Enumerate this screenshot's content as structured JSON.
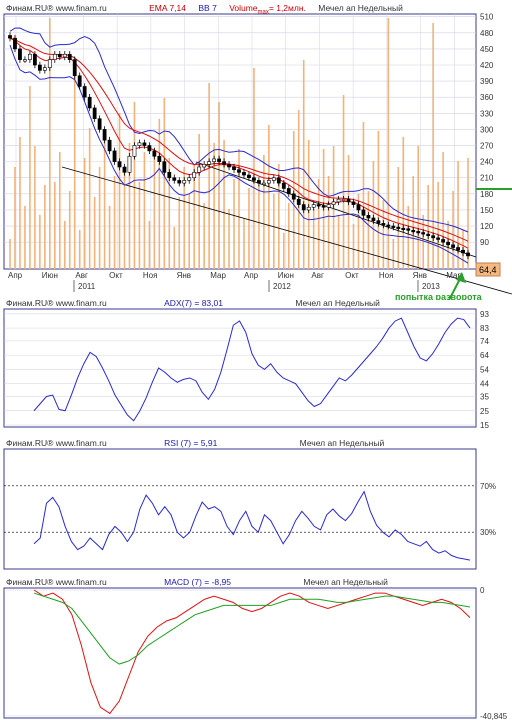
{
  "colors": {
    "frame": "#3a3a8c",
    "grid": "#d2d2e4",
    "price_up": "#ffffff",
    "price_down": "#000000",
    "bollinger": "#2a2ad0",
    "ema": "#e01010",
    "volume": "#f2b27a",
    "trendline": "#000000",
    "support_line": "#2aa02a",
    "annotation": "#2aa02a",
    "adx": "#2a2ad0",
    "rsi": "#2a2ad0",
    "macd_line": "#e01010",
    "macd_signal": "#20a020",
    "last_price_box": "#f4b880"
  },
  "price_panel": {
    "header": {
      "source": "Финам.RU®  www.finam.ru",
      "ema": "EMA 7,14",
      "bb": "BB 7",
      "volume_prefix": "Volume",
      "volume_sub": "max",
      "volume_value": "= 1,2млн.",
      "ticker": "Мечел ап Недельный"
    },
    "last_price_label": "64,4",
    "annotation_label": "попытка разворота",
    "x_month_labels": [
      "Апр",
      "Июн",
      "Авг",
      "Окт",
      "Ноя",
      "Янв",
      "Мар",
      "Апр",
      "Июн",
      "Авг",
      "Окт",
      "Ноя",
      "Янв",
      "Мар"
    ],
    "x_year_labels": [
      "2011",
      "2012",
      "2013"
    ]
  },
  "adx_panel": {
    "header": {
      "source": "Финам.RU®  www.finam.ru",
      "label": "ADX(7) = 83,01",
      "ticker": "Мечел ап Недельный"
    }
  },
  "rsi_panel": {
    "header": {
      "source": "Финам.RU®  www.finam.ru",
      "label": "RSI (7) = 5,91",
      "ticker": "Мечел ап Недельный"
    }
  },
  "macd_panel": {
    "header": {
      "source": "Финам.RU®  www.finam.ru",
      "label": "MACD (7) = -8,95",
      "ticker": "Мечел ап Недельный"
    }
  },
  "chart_data": [
    {
      "type": "candlestick",
      "title": "Мечел ап Недельный",
      "ylim": [
        40,
        515
      ],
      "y_ticks": [
        510,
        480,
        450,
        420,
        390,
        360,
        330,
        300,
        270,
        240,
        210,
        180,
        150,
        120,
        90
      ],
      "x_month_labels": [
        "Апр",
        "Июн",
        "Авг",
        "Окт",
        "Ноя",
        "Янв",
        "Мар",
        "Апр",
        "Июн",
        "Авг",
        "Окт",
        "Ноя",
        "Янв",
        "Мар"
      ],
      "x_year_labels": [
        "2011",
        "2012",
        "2013"
      ],
      "close_approx": [
        470,
        450,
        430,
        430,
        440,
        420,
        410,
        415,
        430,
        440,
        435,
        440,
        430,
        400,
        380,
        360,
        340,
        320,
        300,
        280,
        260,
        240,
        230,
        220,
        250,
        270,
        275,
        270,
        260,
        250,
        240,
        220,
        210,
        205,
        200,
        205,
        210,
        220,
        230,
        235,
        240,
        245,
        240,
        235,
        230,
        225,
        220,
        215,
        210,
        205,
        200,
        200,
        205,
        210,
        200,
        190,
        180,
        170,
        160,
        150,
        155,
        160,
        158,
        155,
        160,
        165,
        170,
        170,
        165,
        160,
        150,
        140,
        135,
        130,
        125,
        122,
        120,
        118,
        116,
        115,
        112,
        110,
        108,
        105,
        102,
        98,
        95,
        90,
        85,
        80,
        75,
        70,
        64.4
      ],
      "last_price": 64.4,
      "support_level": 200,
      "overlays": [
        "EMA 7",
        "EMA 14",
        "Bollinger Bands 7",
        "Volume"
      ],
      "volume_max_label": "1,2млн."
    },
    {
      "type": "line",
      "title": "ADX(7) = 83,01",
      "ylim": [
        15,
        95
      ],
      "y_ticks": [
        93,
        83,
        74,
        64,
        54,
        44,
        35,
        25,
        15
      ],
      "series": [
        {
          "name": "ADX(7)",
          "values": [
            25,
            30,
            35,
            36,
            26,
            25,
            36,
            48,
            58,
            66,
            63,
            55,
            46,
            36,
            29,
            22,
            18,
            25,
            34,
            45,
            55,
            52,
            48,
            45,
            47,
            48,
            46,
            38,
            33,
            40,
            52,
            68,
            85,
            88,
            80,
            65,
            57,
            54,
            58,
            52,
            48,
            46,
            44,
            38,
            32,
            28,
            30,
            36,
            42,
            48,
            46,
            50,
            55,
            60,
            65,
            70,
            76,
            83,
            88,
            90,
            80,
            70,
            62,
            60,
            65,
            72,
            80,
            86,
            90,
            89,
            83
          ]
        }
      ]
    },
    {
      "type": "line",
      "title": "RSI (7) = 5,91",
      "ylim": [
        0,
        100
      ],
      "levels": [
        70,
        30
      ],
      "series": [
        {
          "name": "RSI (7)",
          "values": [
            20,
            25,
            55,
            60,
            52,
            35,
            22,
            15,
            18,
            25,
            20,
            15,
            28,
            35,
            30,
            22,
            30,
            50,
            62,
            55,
            45,
            52,
            45,
            30,
            25,
            30,
            44,
            56,
            50,
            52,
            48,
            35,
            28,
            40,
            48,
            35,
            30,
            45,
            40,
            30,
            20,
            28,
            40,
            48,
            42,
            35,
            32,
            45,
            50,
            44,
            40,
            46,
            56,
            65,
            48,
            36,
            30,
            26,
            32,
            28,
            22,
            20,
            18,
            22,
            15,
            12,
            14,
            10,
            8,
            7,
            5.91
          ]
        }
      ]
    },
    {
      "type": "line",
      "title": "MACD (7) = -8,95",
      "ylim": [
        -40.845,
        0
      ],
      "y_ticks": [
        0,
        -40.845
      ],
      "series": [
        {
          "name": "MACD",
          "values": [
            0,
            -2,
            -1,
            -3,
            -8,
            -18,
            -30,
            -38,
            -40,
            -36,
            -28,
            -20,
            -15,
            -12,
            -10,
            -9,
            -7,
            -5,
            -3,
            -2,
            -3,
            -4,
            -6,
            -7,
            -6,
            -4,
            -2,
            -1,
            -2,
            -4,
            -5,
            -6,
            -5,
            -4,
            -3,
            -2,
            -1,
            -1,
            -2,
            -3,
            -4,
            -5,
            -4,
            -3,
            -4,
            -6,
            -8.95
          ]
        },
        {
          "name": "Signal",
          "values": [
            -1,
            -2,
            -3,
            -4,
            -6,
            -10,
            -14,
            -18,
            -22,
            -24,
            -23,
            -21,
            -18,
            -16,
            -14,
            -12,
            -10,
            -8,
            -7,
            -6,
            -5,
            -5,
            -5,
            -5,
            -5,
            -5,
            -4,
            -3,
            -3,
            -3,
            -3,
            -3.5,
            -4,
            -4,
            -3.5,
            -3,
            -2.5,
            -2,
            -2,
            -2.5,
            -3,
            -3.5,
            -4,
            -4,
            -4.5,
            -5,
            -5.5
          ]
        }
      ]
    }
  ]
}
